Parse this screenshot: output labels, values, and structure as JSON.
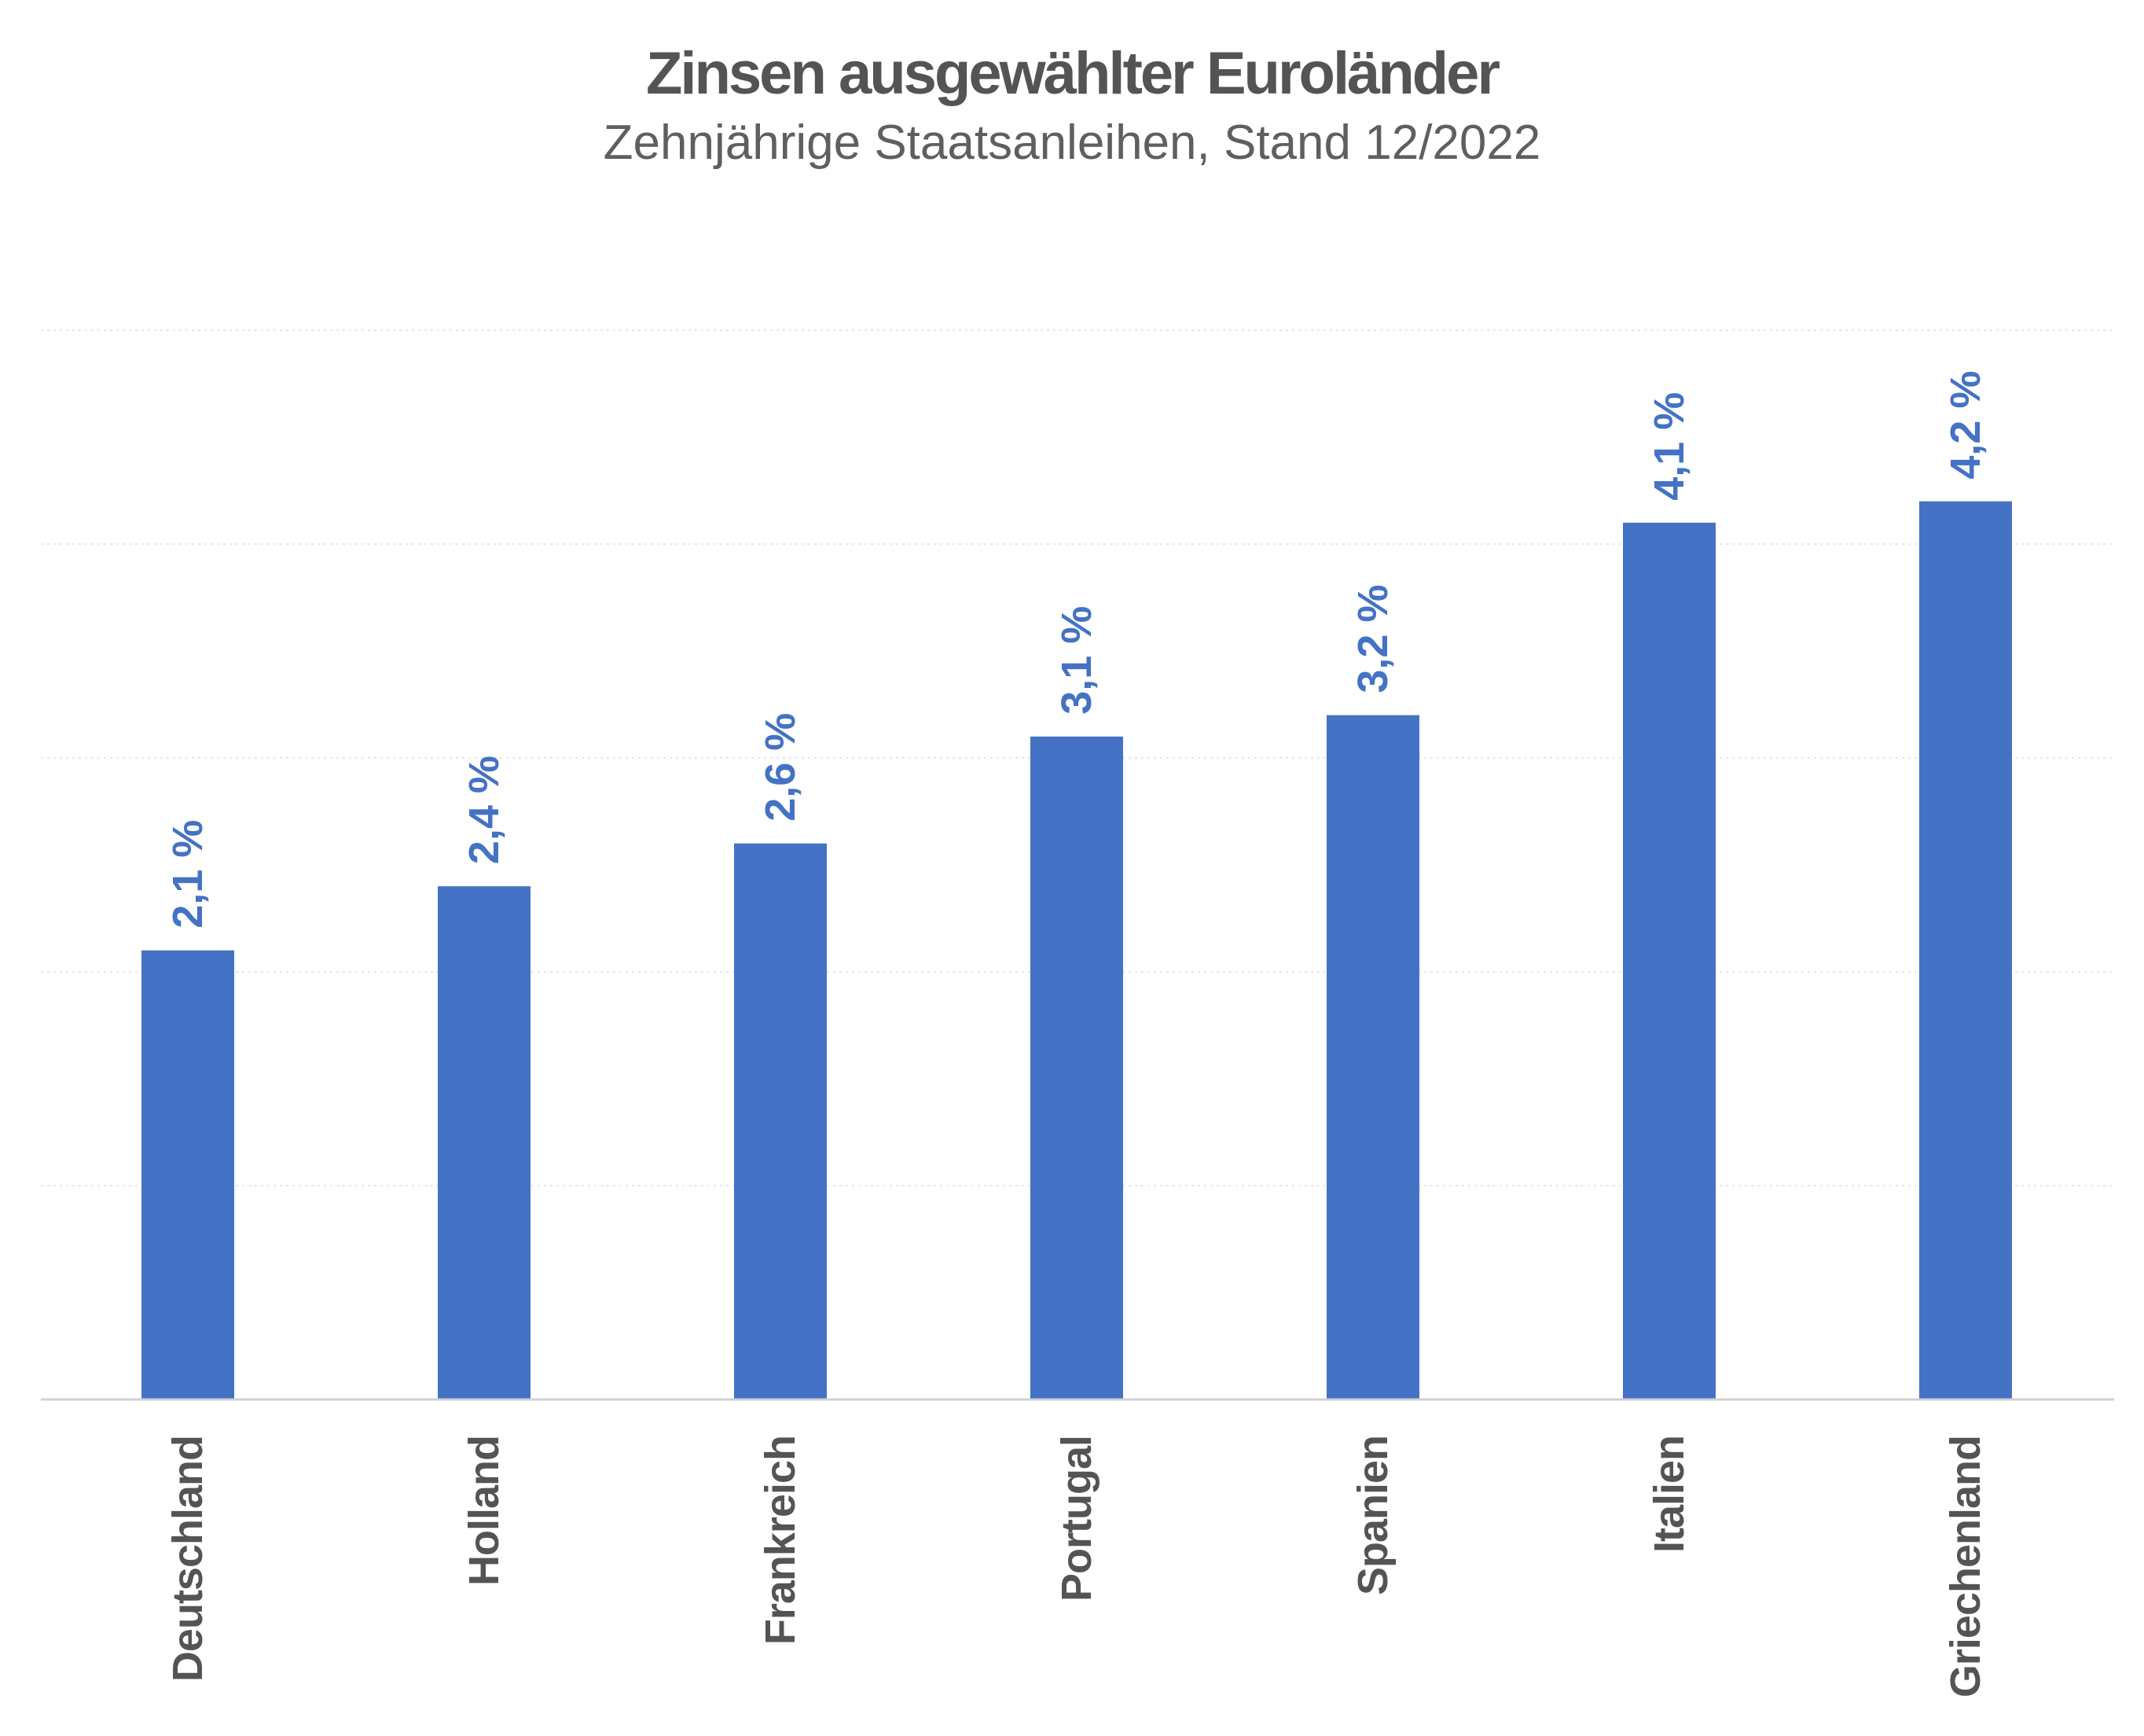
{
  "chart_data": {
    "type": "bar",
    "title": "Zinsen ausgewählter Euroländer",
    "subtitle": "Zehnjährige Staatsanleihen, Stand 12/2022",
    "xlabel": "",
    "ylabel": "",
    "categories": [
      "Deutschland",
      "Holland",
      "Frankreich",
      "Portugal",
      "Spanien",
      "Italien",
      "Griechenland"
    ],
    "values": [
      2.1,
      2.4,
      2.6,
      3.1,
      3.2,
      4.1,
      4.2
    ],
    "data_labels": [
      "2,1 %",
      "2,4 %",
      "2,6 %",
      "3,1 %",
      "3,2 %",
      "4,1 %",
      "4,2 %"
    ],
    "ylim": [
      0,
      5
    ],
    "grid": true,
    "legend": "none",
    "bar_color": "#4472c4",
    "label_color": "#4472c4",
    "category_label_color": "#545454"
  }
}
